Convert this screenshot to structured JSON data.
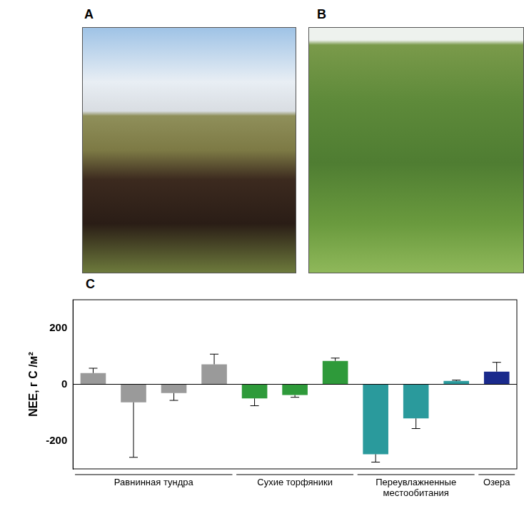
{
  "panel_labels": [
    "A",
    "B",
    "C"
  ],
  "chart_data": {
    "type": "bar",
    "y_label": "NEE, г С /м²",
    "categories": [
      null,
      null,
      null,
      null,
      null,
      null,
      null,
      null,
      null,
      null,
      null
    ],
    "values": [
      40,
      -64,
      -31,
      71,
      -50,
      -38,
      83,
      -248,
      -121,
      12,
      45
    ],
    "errors": [
      17,
      195,
      26,
      36,
      26,
      8,
      10,
      28,
      36,
      3,
      33
    ],
    "colors": [
      "#9a9a9a",
      "#9a9a9a",
      "#9a9a9a",
      "#9a9a9a",
      "#2e9a3a",
      "#2e9a3a",
      "#2e9a3a",
      "#2a9a9c",
      "#2a9a9c",
      "#2a9a9c",
      "#1a2a8c"
    ],
    "groups": [
      {
        "label": "Равнинная тундра",
        "size": 4
      },
      {
        "label": "Сухие торфяники",
        "size": 3
      },
      {
        "label": "Переувлажненные местообитания",
        "size": 3
      },
      {
        "label": "Озера",
        "size": 1
      }
    ],
    "ylim": [
      -300,
      300
    ],
    "yticks": [
      -200,
      0,
      200
    ],
    "grid": false,
    "tick_labels": "y"
  }
}
